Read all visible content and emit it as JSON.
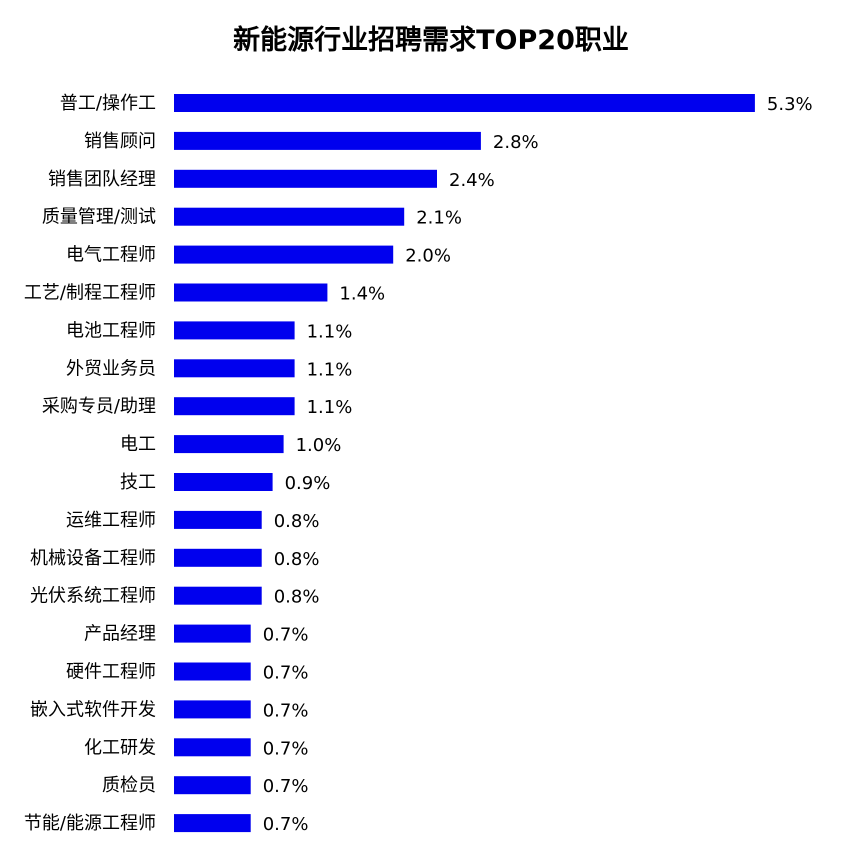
{
  "chart_data": {
    "type": "bar",
    "orientation": "horizontal",
    "title": "新能源行业招聘需求TOP20职业",
    "categories": [
      "普工/操作工",
      "销售顾问",
      "销售团队经理",
      "质量管理/测试",
      "电气工程师",
      "工艺/制程工程师",
      "电池工程师",
      "外贸业务员",
      "采购专员/助理",
      "电工",
      "技工",
      "运维工程师",
      "机械设备工程师",
      "光伏系统工程师",
      "产品经理",
      "硬件工程师",
      "嵌入式软件开发",
      "化工研发",
      "质检员",
      "节能/能源工程师"
    ],
    "values": [
      5.3,
      2.8,
      2.4,
      2.1,
      2.0,
      1.4,
      1.1,
      1.1,
      1.1,
      1.0,
      0.9,
      0.8,
      0.8,
      0.8,
      0.7,
      0.7,
      0.7,
      0.7,
      0.7,
      0.7
    ],
    "value_labels": [
      "5.3%",
      "2.8%",
      "2.4%",
      "2.1%",
      "2.0%",
      "1.4%",
      "1.1%",
      "1.1%",
      "1.1%",
      "1.0%",
      "0.9%",
      "0.8%",
      "0.8%",
      "0.8%",
      "0.7%",
      "0.7%",
      "0.7%",
      "0.7%",
      "0.7%",
      "0.7%"
    ],
    "bar_color": "#0000ee",
    "xlabel": "",
    "ylabel": "",
    "grid": false,
    "legend": "none"
  }
}
